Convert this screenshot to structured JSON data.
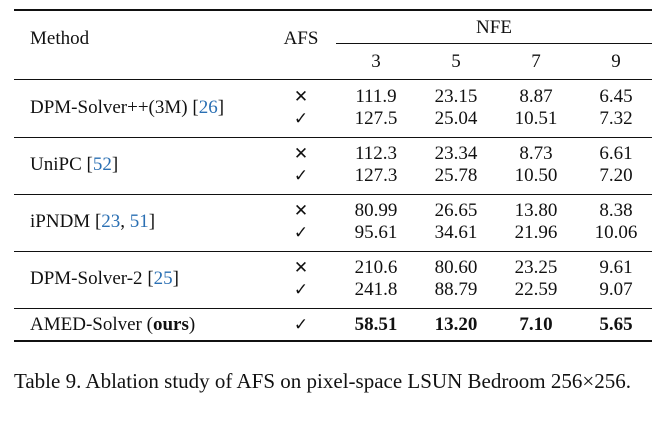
{
  "table": {
    "headers": {
      "method": "Method",
      "afs": "AFS",
      "nfe": "NFE",
      "nfe_values": [
        "3",
        "5",
        "7",
        "9"
      ]
    },
    "groups": [
      {
        "method": "DPM-Solver++(3M)",
        "cite_open": " [",
        "cites": [
          "26"
        ],
        "cite_close": "]",
        "rows": [
          {
            "afs": "✕",
            "values": [
              "111.9",
              "23.15",
              "8.87",
              "6.45"
            ]
          },
          {
            "afs": "✓",
            "values": [
              "127.5",
              "25.04",
              "10.51",
              "7.32"
            ]
          }
        ]
      },
      {
        "method": "UniPC",
        "cite_open": " [",
        "cites": [
          "52"
        ],
        "cite_close": "]",
        "rows": [
          {
            "afs": "✕",
            "values": [
              "112.3",
              "23.34",
              "8.73",
              "6.61"
            ]
          },
          {
            "afs": "✓",
            "values": [
              "127.3",
              "25.78",
              "10.50",
              "7.20"
            ]
          }
        ]
      },
      {
        "method": "iPNDM",
        "cite_open": " [",
        "cites": [
          "23",
          "51"
        ],
        "cite_sep": ", ",
        "cite_close": "]",
        "rows": [
          {
            "afs": "✕",
            "values": [
              "80.99",
              "26.65",
              "13.80",
              "8.38"
            ]
          },
          {
            "afs": "✓",
            "values": [
              "95.61",
              "34.61",
              "21.96",
              "10.06"
            ]
          }
        ]
      },
      {
        "method": "DPM-Solver-2",
        "cite_open": " [",
        "cites": [
          "25"
        ],
        "cite_close": "]",
        "rows": [
          {
            "afs": "✕",
            "values": [
              "210.6",
              "80.60",
              "23.25",
              "9.61"
            ]
          },
          {
            "afs": "✓",
            "values": [
              "241.8",
              "88.79",
              "22.59",
              "9.07"
            ]
          }
        ]
      }
    ],
    "final": {
      "method": "AMED-Solver",
      "paren_open": " (",
      "ours": "ours",
      "paren_close": ")",
      "afs": "✓",
      "values": [
        "58.51",
        "13.20",
        "7.10",
        "5.65"
      ]
    }
  },
  "caption": "Table 9.  Ablation study of AFS on pixel-space LSUN Bedroom 256×256.",
  "colors": {
    "citation": "#2a6fb3",
    "text": "#111111"
  }
}
